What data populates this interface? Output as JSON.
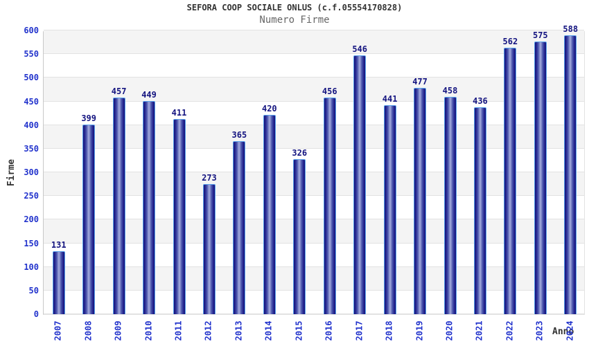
{
  "header": {
    "title": "SEFORA COOP SOCIALE ONLUS (c.f.05554170828)",
    "subtitle": "Numero Firme"
  },
  "chart_data": {
    "type": "bar",
    "title": "SEFORA COOP SOCIALE ONLUS (c.f.05554170828)",
    "subtitle": "Numero Firme",
    "xlabel": "Anno",
    "ylabel": "Firme",
    "categories": [
      "2007",
      "2008",
      "2009",
      "2010",
      "2011",
      "2012",
      "2013",
      "2014",
      "2015",
      "2016",
      "2017",
      "2018",
      "2019",
      "2020",
      "2021",
      "2022",
      "2023",
      "2024"
    ],
    "values": [
      131,
      399,
      457,
      449,
      411,
      273,
      365,
      420,
      326,
      456,
      546,
      441,
      477,
      458,
      436,
      562,
      575,
      588
    ],
    "ylim": [
      0,
      600
    ],
    "ytick_step": 50,
    "grid": true,
    "legend": "none",
    "band_alternating": true,
    "colors": {
      "bar_edge_dark": "#14147a",
      "bar_center_light": "#a8b0e0",
      "bar_border": "#58a0ea",
      "value_label": "#141480",
      "axis_tick_label": "#2233cc",
      "title": "#333333",
      "subtitle": "#666666",
      "band": "#f4f4f4",
      "gridline": "#e2e2e2",
      "background": "#ffffff"
    }
  }
}
